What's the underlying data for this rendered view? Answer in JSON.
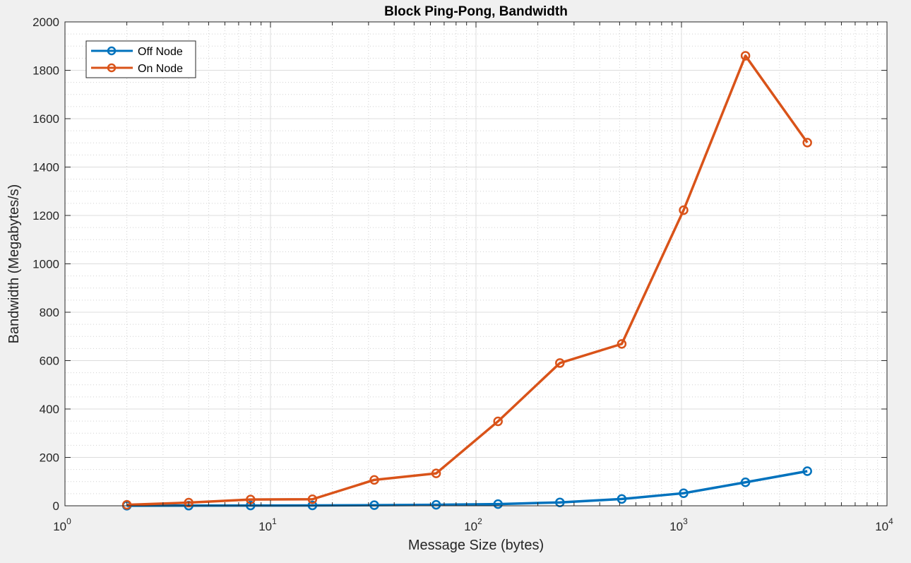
{
  "window": {
    "background_color": "#f0f0f0",
    "axes_background": "#ffffff"
  },
  "chart_data": {
    "type": "line",
    "title": "Block Ping-Pong, Bandwidth",
    "xlabel": "Message Size (bytes)",
    "ylabel": "Bandwidth (Megabytes/s)",
    "xscale": "log",
    "xlim": [
      1,
      10000
    ],
    "ylim": [
      0,
      2000
    ],
    "grid": true,
    "minor_grid": true,
    "legend_position": "top-left",
    "x_ticks": [
      {
        "base": "10",
        "exp": "0",
        "value": 1
      },
      {
        "base": "10",
        "exp": "1",
        "value": 10
      },
      {
        "base": "10",
        "exp": "2",
        "value": 100
      },
      {
        "base": "10",
        "exp": "3",
        "value": 1000
      },
      {
        "base": "10",
        "exp": "4",
        "value": 10000
      }
    ],
    "y_ticks": [
      "0",
      "200",
      "400",
      "600",
      "800",
      "1000",
      "1200",
      "1400",
      "1600",
      "1800",
      "2000"
    ],
    "x": [
      2,
      4,
      8,
      16,
      32,
      64,
      128,
      256,
      512,
      1024,
      2048,
      4096
    ],
    "series": [
      {
        "name": "Off Node",
        "color": "#0072bd",
        "values": [
          0.3,
          0.6,
          1.1,
          1.6,
          2.5,
          4,
          7,
          14,
          28,
          52,
          97,
          143
        ]
      },
      {
        "name": "On Node",
        "color": "#d95319",
        "values": [
          4,
          13,
          26,
          27,
          107,
          134,
          349,
          590,
          669,
          1222,
          1860,
          1501
        ]
      }
    ]
  }
}
